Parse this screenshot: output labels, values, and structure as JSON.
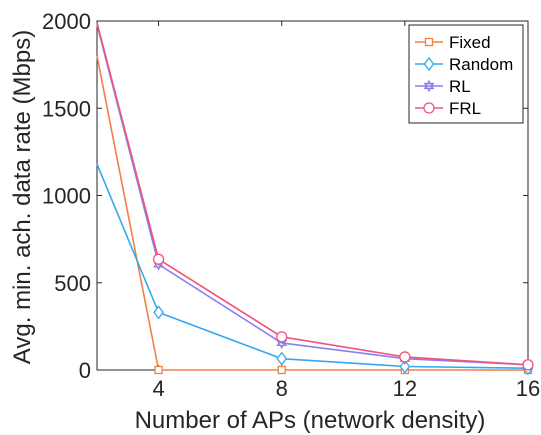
{
  "chart_data": {
    "type": "line",
    "title": "",
    "xlabel": "Number of APs (network density)",
    "ylabel": "Avg. min. ach. data rate (Mbps)",
    "xlim": [
      2,
      16
    ],
    "ylim": [
      0,
      2000
    ],
    "xticks": [
      "4",
      "8",
      "12",
      "16"
    ],
    "yticks": [
      "0",
      "500",
      "1000",
      "1500",
      "2000"
    ],
    "legend_position": "top-right",
    "grid": false,
    "series": [
      {
        "name": "Fixed",
        "color": "#f07f4a",
        "marker": "square",
        "x": [
          2,
          4,
          8,
          12,
          16
        ],
        "y": [
          1800,
          0,
          0,
          0,
          0
        ],
        "marker_x": [
          4,
          8,
          12,
          16
        ]
      },
      {
        "name": "Random",
        "color": "#33aaee",
        "marker": "diamond",
        "x": [
          2,
          4,
          8,
          12,
          16
        ],
        "y": [
          1180,
          330,
          65,
          20,
          10
        ],
        "marker_x": [
          4,
          8,
          12,
          16
        ]
      },
      {
        "name": "RL",
        "color": "#8b7ff0",
        "marker": "hexagram",
        "x": [
          2,
          4,
          8,
          12,
          16
        ],
        "y": [
          1980,
          605,
          155,
          65,
          30
        ],
        "marker_x": [
          4,
          8,
          12,
          16
        ]
      },
      {
        "name": "FRL",
        "color": "#f0557a",
        "marker": "circle",
        "x": [
          2,
          4,
          8,
          12,
          16
        ],
        "y": [
          1990,
          635,
          190,
          75,
          30
        ],
        "marker_x": [
          4,
          8,
          12,
          16
        ]
      }
    ]
  }
}
